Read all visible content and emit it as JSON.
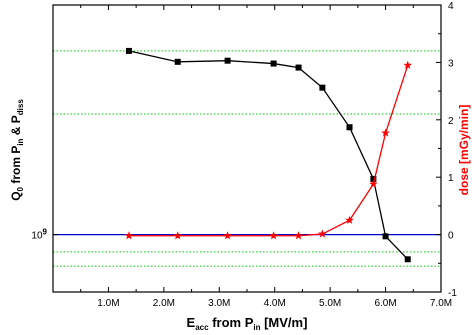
{
  "chart_data": {
    "type": "line",
    "xlabel": {
      "main": "E",
      "sub": "acc",
      "rest": " from P",
      "sub2": "in",
      "tail": " [MV/m]"
    },
    "ylabel": {
      "main": "Q",
      "sub": "0",
      "mid": " from P",
      "sub2": "in",
      "amp": " & P",
      "sub3": "diss"
    },
    "y2label": "dose [mGy/min]",
    "xlim": [
      0,
      7000000
    ],
    "y2lim": [
      -1,
      4
    ],
    "x_ticks": [
      1000000,
      2000000,
      3000000,
      4000000,
      5000000,
      6000000,
      7000000
    ],
    "x_tick_labels": [
      "1.0M",
      "2.0M",
      "3.0M",
      "4.0M",
      "5.0M",
      "6.0M",
      "7.0M"
    ],
    "y2_ticks": [
      -1,
      0,
      1,
      2,
      3,
      4
    ],
    "y2_tick_labels": [
      "-1",
      "0",
      "1",
      "2",
      "3",
      "4"
    ],
    "y_log_label": "10",
    "y_log_exp": "9",
    "y_scale": "log",
    "grid_y2": [
      3.2,
      2.1,
      -0.3,
      -0.55
    ],
    "hline_y2": 0,
    "series": [
      {
        "name": "",
        "axis": "left (Q0, log)",
        "color": "#000000",
        "marker": "square",
        "x": [
          1370000,
          2250000,
          3150000,
          3980000,
          4430000,
          4860000,
          5350000,
          5780000,
          6000000,
          6400000
        ],
        "y_on_right_axis_scale": [
          3.2,
          3.01,
          3.03,
          2.98,
          2.91,
          2.56,
          1.87,
          0.97,
          -0.03,
          -0.43
        ]
      },
      {
        "name": "",
        "axis": "right (dose)",
        "color": "#ff0000",
        "marker": "star",
        "x": [
          1370000,
          2250000,
          3150000,
          3980000,
          4430000,
          4860000,
          5350000,
          5780000,
          6000000,
          6400000
        ],
        "y": [
          -0.02,
          -0.02,
          -0.02,
          -0.02,
          -0.02,
          0.01,
          0.25,
          0.88,
          1.77,
          2.95
        ]
      }
    ]
  },
  "colors": {
    "grid": "#00cc00",
    "hline": "#0000cc",
    "right_axis_label": "#ff0000"
  }
}
